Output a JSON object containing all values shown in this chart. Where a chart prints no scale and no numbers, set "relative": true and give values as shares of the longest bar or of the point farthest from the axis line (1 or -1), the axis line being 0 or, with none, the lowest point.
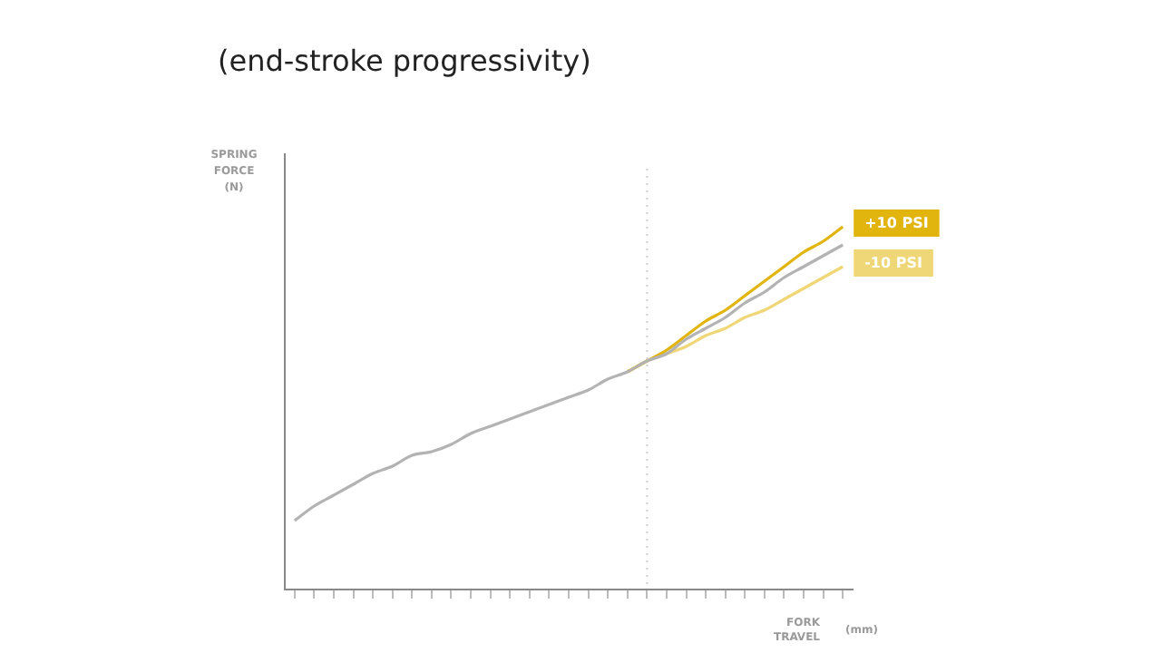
{
  "chart_data": {
    "type": "line",
    "title": "(end-stroke progressivity)",
    "ylabel": "SPRING FORCE (N)",
    "xlabel": "FORK TRAVEL (mm)",
    "relative": true,
    "grid": false,
    "marker": "none",
    "line_style": "solid",
    "categories": [
      null,
      null,
      null,
      null,
      null,
      null,
      null,
      null,
      null,
      null,
      null,
      null,
      null,
      null,
      null,
      null,
      null,
      null,
      null,
      null,
      null,
      null,
      null,
      null,
      null,
      null,
      null,
      null,
      null
    ],
    "series": [
      {
        "color": "#b3b3b3",
        "values": [
          0.19,
          0.23,
          0.26,
          0.29,
          0.32,
          0.34,
          0.37,
          0.38,
          0.4,
          0.43,
          0.45,
          0.47,
          0.49,
          0.51,
          0.53,
          0.55,
          0.58,
          0.6,
          0.63,
          0.65,
          0.69,
          0.72,
          0.75,
          0.79,
          0.82,
          0.86,
          0.89,
          0.92,
          0.95
        ]
      },
      {
        "name": "+10 PSI",
        "color": "#e2b40e",
        "values": [
          null,
          null,
          null,
          null,
          null,
          null,
          null,
          null,
          null,
          null,
          null,
          null,
          null,
          null,
          null,
          null,
          null,
          0.6,
          0.63,
          0.66,
          0.7,
          0.74,
          0.77,
          0.81,
          0.85,
          0.89,
          0.93,
          0.96,
          1.0
        ]
      },
      {
        "name": "-10 PSI",
        "color": "#efd777",
        "values": [
          null,
          null,
          null,
          null,
          null,
          null,
          null,
          null,
          null,
          null,
          null,
          null,
          null,
          null,
          null,
          null,
          null,
          0.6,
          0.63,
          0.65,
          0.67,
          0.7,
          0.72,
          0.75,
          0.77,
          0.8,
          0.83,
          0.86,
          0.89
        ]
      }
    ]
  }
}
